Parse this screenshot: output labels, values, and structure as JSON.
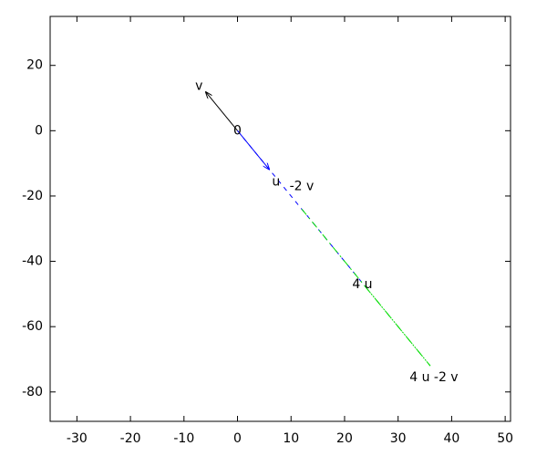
{
  "chart_data": {
    "type": "vector",
    "xlim": [
      -35,
      51
    ],
    "ylim": [
      -89,
      35
    ],
    "xticks": [
      -30,
      -20,
      -10,
      0,
      10,
      20,
      30,
      40,
      50
    ],
    "yticks": [
      -80,
      -60,
      -40,
      -20,
      0,
      20
    ],
    "grid": false,
    "segments": [
      {
        "color": "#000000",
        "style": "arrow",
        "x": [
          0,
          -6
        ],
        "y": [
          0,
          12
        ]
      },
      {
        "color": "#0000ff",
        "style": "arrow",
        "x": [
          0,
          6
        ],
        "y": [
          0,
          -12
        ]
      },
      {
        "color": "#0000ff",
        "style": "dash",
        "x": [
          0,
          24
        ],
        "y": [
          0,
          -48
        ]
      },
      {
        "color": "#00dd00",
        "style": "dashdot",
        "x": [
          12,
          36
        ],
        "y": [
          -24,
          -72
        ]
      },
      {
        "color": "#00dd00",
        "style": "dashdot",
        "x": [
          24,
          36
        ],
        "y": [
          -48,
          -72
        ]
      }
    ],
    "points": [
      {
        "label": "v",
        "x": -6,
        "y": 12
      },
      {
        "label": "0",
        "x": 0,
        "y": 0
      },
      {
        "label": "u",
        "x": 6,
        "y": -12
      },
      {
        "label": "-2 v",
        "x": 12,
        "y": -24
      },
      {
        "label": "4 u",
        "x": 24,
        "y": -48
      },
      {
        "label": "4 u -2 v",
        "x": 36,
        "y": -72
      }
    ]
  }
}
